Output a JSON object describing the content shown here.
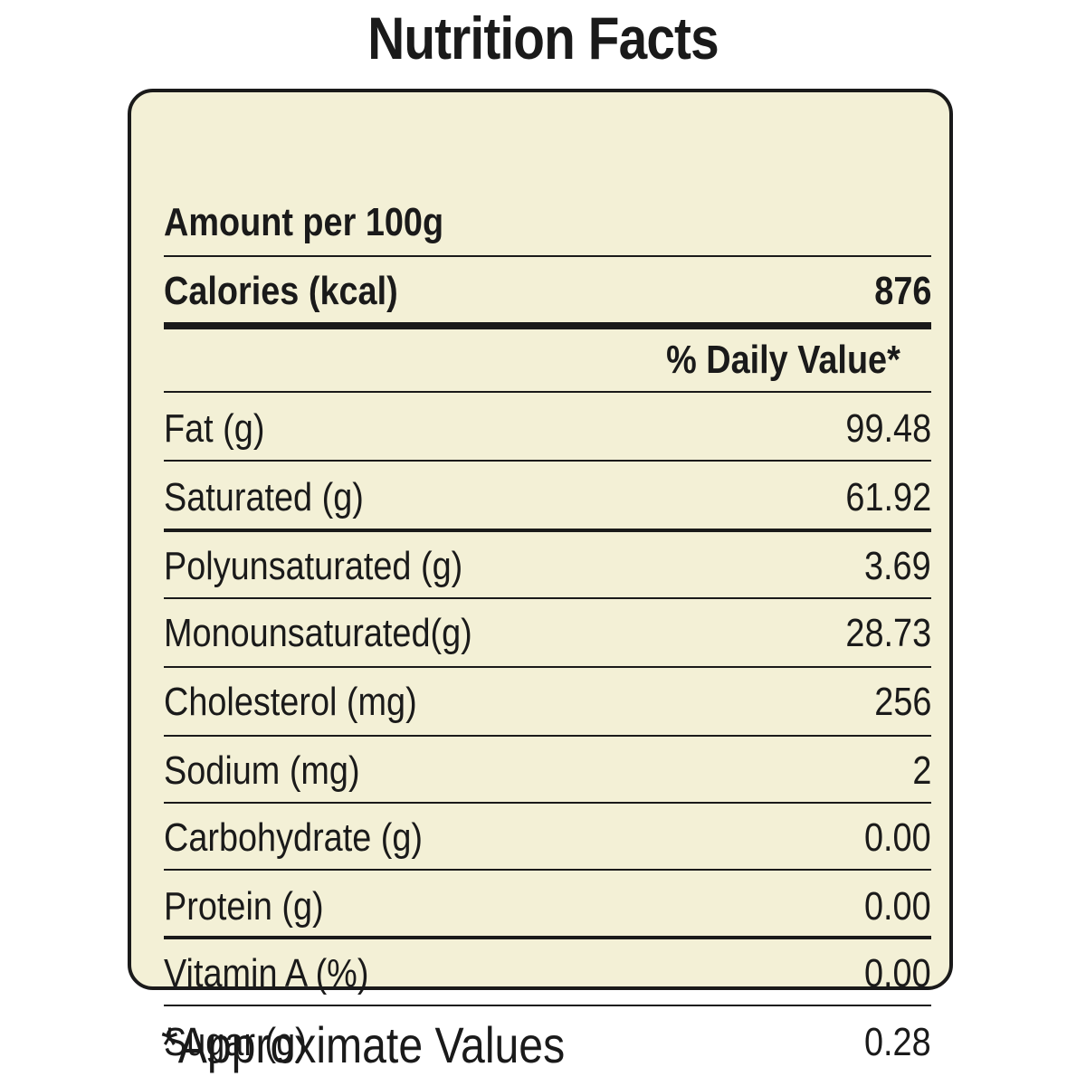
{
  "title": "Nutrition Facts",
  "serving": "Amount per 100g",
  "calories": {
    "label": "Calories (kcal)",
    "value": "876"
  },
  "daily_value_header": "% Daily Value*",
  "nutrients": [
    {
      "label": "Fat (g)",
      "value": "99.48"
    },
    {
      "label": "Saturated (g)",
      "value": "61.92"
    },
    {
      "label": "Polyunsaturated (g)",
      "value": "3.69"
    },
    {
      "label": "Monounsaturated(g)",
      "value": "28.73"
    },
    {
      "label": "Cholesterol (mg)",
      "value": "256"
    },
    {
      "label": "Sodium (mg)",
      "value": "2"
    },
    {
      "label": "Carbohydrate (g)",
      "value": "0.00"
    },
    {
      "label": "Protein (g)",
      "value": "0.00"
    },
    {
      "label": "Vitamin A (%)",
      "value": "0.00"
    },
    {
      "label": "Sugar (g)",
      "value": "0.28"
    }
  ],
  "footnote": "*Approximate Values",
  "colors": {
    "panel_background": "#f3f0d6",
    "text": "#1a1a1a"
  }
}
